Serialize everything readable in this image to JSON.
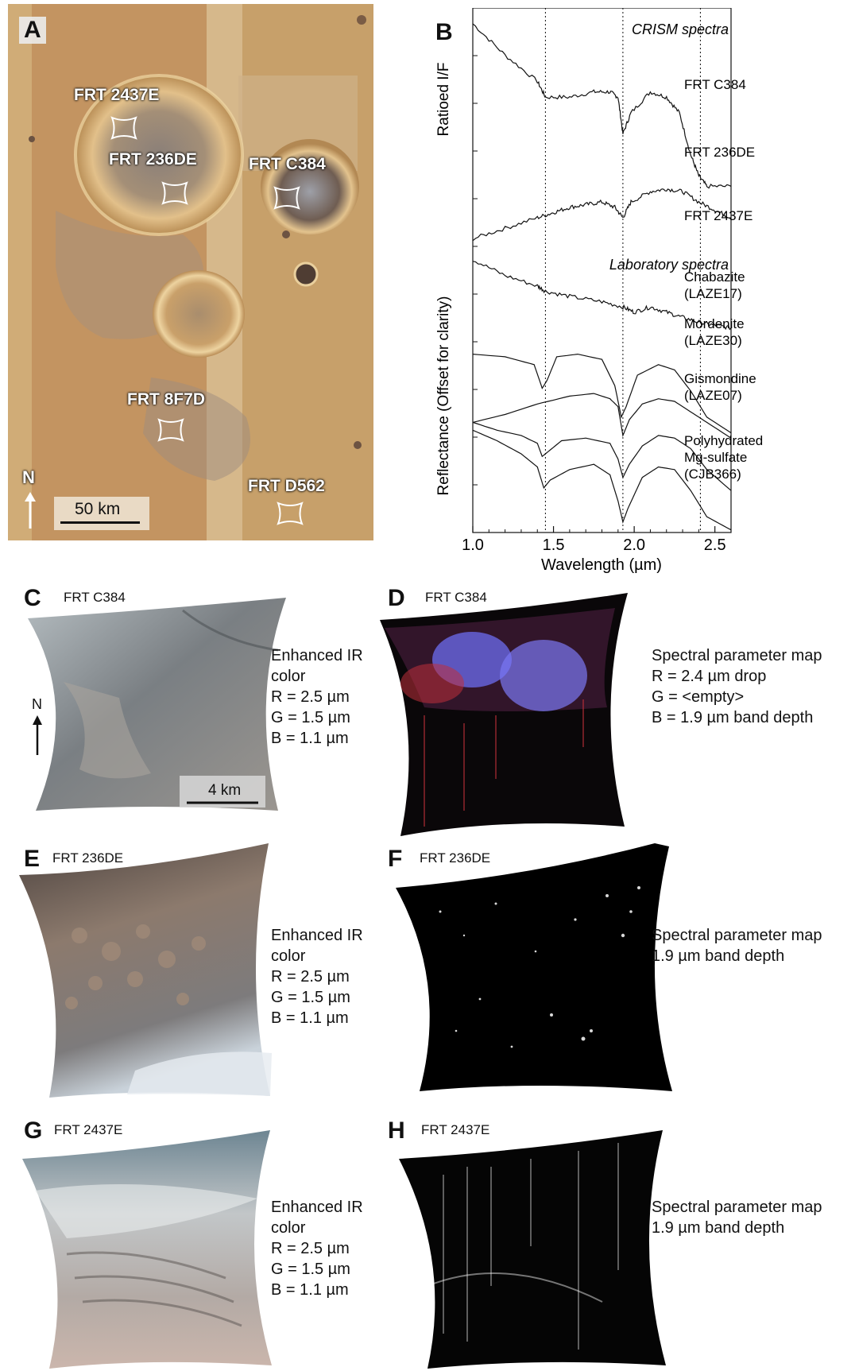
{
  "colors": {
    "mars_base": "#c89a5c",
    "text": "#111111",
    "ir_c": "#8d8f8e",
    "ir_e": "#7b6f66",
    "ir_g": "#a9a39c",
    "map_d_red": "#c0303a",
    "map_d_blue": "#6c6cf0"
  },
  "panel_a": {
    "label": "A",
    "sites": [
      {
        "name": "FRT 2437E"
      },
      {
        "name": "FRT 236DE"
      },
      {
        "name": "FRT C384"
      },
      {
        "name": "FRT 8F7D"
      },
      {
        "name": "FRT D562"
      }
    ],
    "north_label": "N",
    "scale_label": "50 km"
  },
  "panel_b": {
    "label": "B",
    "crism_header": "CRISM spectra",
    "lab_header": "Laboratory spectra",
    "ylabel_top": "Ratioed I/F",
    "ylabel_bottom": "Reflectance (Offset for clarity)",
    "xlabel": "Wavelength (µm)"
  },
  "chart_data": {
    "type": "line",
    "title": "",
    "xlabel": "Wavelength (µm)",
    "ylabel": "Ratioed I/F / Reflectance (Offset for clarity)",
    "xlim": [
      1.0,
      2.6
    ],
    "xticks": [
      "1.0",
      "1.5",
      "2.0",
      "2.5"
    ],
    "reference_lines_um": [
      1.45,
      1.93,
      2.41
    ],
    "groups": [
      {
        "name": "CRISM spectra",
        "series": [
          "FRT C384",
          "FRT 236DE",
          "FRT 2437E"
        ]
      },
      {
        "name": "Laboratory spectra",
        "series": [
          "Chabazite (LAZE17)",
          "Mordenite (LAZE30)",
          "Gismondine (LAZE07)",
          "Polyhydrated Mg-sulfate (CJB366)"
        ]
      }
    ],
    "series": [
      {
        "name": "FRT C384",
        "label_lines": [
          "FRT C384"
        ],
        "x": [
          1.0,
          1.2,
          1.4,
          1.45,
          1.6,
          1.75,
          1.85,
          1.9,
          1.93,
          1.98,
          2.1,
          2.2,
          2.28,
          2.35,
          2.4,
          2.45,
          2.6
        ],
        "y": [
          0.97,
          0.91,
          0.86,
          0.83,
          0.83,
          0.84,
          0.84,
          0.83,
          0.76,
          0.8,
          0.84,
          0.83,
          0.8,
          0.72,
          0.68,
          0.66,
          0.66
        ]
      },
      {
        "name": "FRT 236DE",
        "label_lines": [
          "FRT 236DE"
        ],
        "x": [
          1.0,
          1.2,
          1.4,
          1.5,
          1.6,
          1.7,
          1.8,
          1.88,
          1.93,
          1.98,
          2.1,
          2.2,
          2.3,
          2.4,
          2.5,
          2.6
        ],
        "y": [
          0.56,
          0.58,
          0.6,
          0.61,
          0.62,
          0.625,
          0.63,
          0.62,
          0.6,
          0.63,
          0.65,
          0.655,
          0.65,
          0.63,
          0.615,
          0.6
        ]
      },
      {
        "name": "FRT 2437E",
        "label_lines": [
          "FRT 2437E"
        ],
        "x": [
          1.0,
          1.2,
          1.4,
          1.45,
          1.6,
          1.8,
          1.93,
          2.0,
          2.1,
          2.2,
          2.3,
          2.41,
          2.5,
          2.6
        ],
        "y": [
          0.52,
          0.49,
          0.47,
          0.46,
          0.45,
          0.44,
          0.43,
          0.42,
          0.43,
          0.42,
          0.41,
          0.4,
          0.395,
          0.39
        ]
      },
      {
        "name": "Chabazite (LAZE17)",
        "label_lines": [
          "Chabazite",
          "(LAZE17)"
        ],
        "x": [
          1.0,
          1.2,
          1.38,
          1.43,
          1.46,
          1.52,
          1.65,
          1.8,
          1.88,
          1.92,
          1.95,
          2.02,
          2.15,
          2.25,
          2.35,
          2.45,
          2.6
        ],
        "y": [
          0.34,
          0.335,
          0.32,
          0.275,
          0.29,
          0.335,
          0.34,
          0.33,
          0.28,
          0.22,
          0.24,
          0.3,
          0.32,
          0.31,
          0.27,
          0.22,
          0.19
        ]
      },
      {
        "name": "Mordenite (LAZE30)",
        "label_lines": [
          "Mordenite",
          "(LAZE30)"
        ],
        "x": [
          1.0,
          1.2,
          1.4,
          1.6,
          1.75,
          1.85,
          1.9,
          1.93,
          1.97,
          2.05,
          2.15,
          2.25,
          2.35,
          2.45,
          2.6
        ],
        "y": [
          0.21,
          0.225,
          0.245,
          0.26,
          0.265,
          0.255,
          0.24,
          0.185,
          0.215,
          0.245,
          0.255,
          0.25,
          0.23,
          0.21,
          0.18
        ]
      },
      {
        "name": "Gismondine (LAZE07)",
        "label_lines": [
          "Gismondine",
          "(LAZE07)"
        ],
        "x": [
          1.0,
          1.15,
          1.3,
          1.4,
          1.43,
          1.47,
          1.55,
          1.7,
          1.85,
          1.9,
          1.93,
          1.97,
          2.05,
          2.15,
          2.25,
          2.35,
          2.45,
          2.6
        ],
        "y": [
          0.21,
          0.195,
          0.185,
          0.17,
          0.145,
          0.155,
          0.175,
          0.18,
          0.17,
          0.14,
          0.105,
          0.13,
          0.165,
          0.185,
          0.18,
          0.16,
          0.12,
          0.08
        ]
      },
      {
        "name": "Polyhydrated Mg-sulfate (CJB366)",
        "label_lines": [
          "Polyhydrated",
          "Mg-sulfate",
          "(CJB366)"
        ],
        "x": [
          1.0,
          1.15,
          1.3,
          1.4,
          1.44,
          1.48,
          1.6,
          1.75,
          1.85,
          1.9,
          1.93,
          1.96,
          2.05,
          2.15,
          2.25,
          2.35,
          2.45,
          2.6
        ],
        "y": [
          0.195,
          0.175,
          0.15,
          0.125,
          0.085,
          0.1,
          0.12,
          0.13,
          0.11,
          0.06,
          0.02,
          0.045,
          0.105,
          0.125,
          0.12,
          0.08,
          0.03,
          0.005
        ]
      }
    ]
  },
  "panel_c": {
    "label": "C",
    "title": "FRT C384",
    "north_label": "N",
    "scale_label": "4 km",
    "caption": "Enhanced IR\ncolor\nR = 2.5 µm\nG = 1.5 µm\nB = 1.1 µm"
  },
  "panel_d": {
    "label": "D",
    "title": "FRT C384",
    "caption": "Spectral parameter map\nR = 2.4 µm drop\nG = <empty>\nB = 1.9 µm band depth"
  },
  "panel_e": {
    "label": "E",
    "title": "FRT 236DE",
    "caption": "Enhanced IR\ncolor\nR = 2.5 µm\nG = 1.5 µm\nB = 1.1 µm"
  },
  "panel_f": {
    "label": "F",
    "title": "FRT 236DE",
    "caption": "Spectral parameter map\n1.9 µm band depth"
  },
  "panel_g": {
    "label": "G",
    "title": "FRT 2437E",
    "caption": "Enhanced IR\ncolor\nR = 2.5 µm\nG = 1.5 µm\nB = 1.1 µm"
  },
  "panel_h": {
    "label": "H",
    "title": "FRT 2437E",
    "caption": "Spectral parameter map\n1.9 µm band depth"
  }
}
